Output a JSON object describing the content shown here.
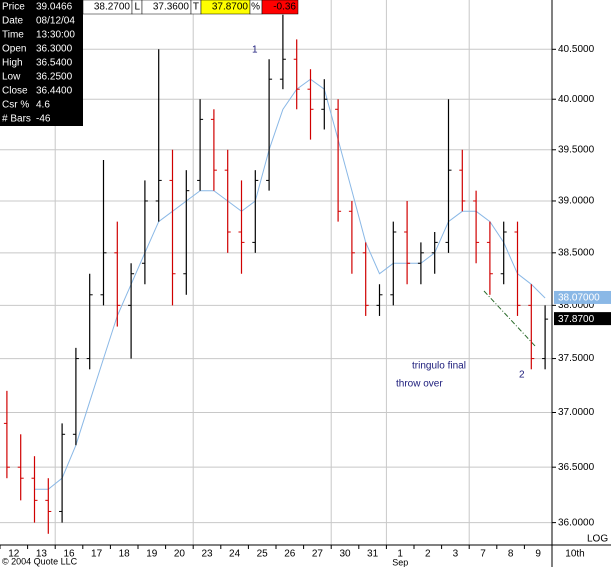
{
  "info_panel": {
    "rows": [
      [
        "Price",
        "39.0466"
      ],
      [
        "Date",
        "08/12/04"
      ],
      [
        "Time",
        "13:30:00"
      ],
      [
        "Open",
        "36.3000"
      ],
      [
        "High",
        "36.5400"
      ],
      [
        "Low",
        "36.2500"
      ],
      [
        "Close",
        "36.4400"
      ],
      [
        "Csr %",
        "4.6"
      ],
      [
        "# Bars",
        "-46"
      ]
    ]
  },
  "quote_bar": [
    "38.2700",
    "L",
    "37.3600",
    "T",
    "37.8700",
    "%",
    "-0.36"
  ],
  "footer": "© 2004 Quote LLC",
  "chart_data": {
    "type": "ohlc",
    "log": true,
    "grid": true,
    "ylim": [
      35.8,
      41.0
    ],
    "yticks": [
      {
        "value": 36,
        "label": "36.0000"
      },
      {
        "value": 36.5,
        "label": "36.5000"
      },
      {
        "value": 37,
        "label": "37.0000"
      },
      {
        "value": 37.5,
        "label": "37.5000"
      },
      {
        "value": 38,
        "label": "38.0000"
      },
      {
        "value": 38.5,
        "label": "38.5000"
      },
      {
        "value": 39,
        "label": "39.0000"
      },
      {
        "value": 39.5,
        "label": "39.5000"
      },
      {
        "value": 40,
        "label": "40.0000"
      },
      {
        "value": 40.5,
        "label": "40.5000"
      }
    ],
    "categories": [
      "12",
      null,
      "13",
      null,
      "16",
      null,
      "17",
      null,
      "18",
      null,
      "19",
      null,
      "20",
      null,
      "23",
      null,
      "24",
      null,
      "25",
      null,
      "26",
      null,
      "27",
      null,
      "30",
      null,
      "31",
      null,
      "1",
      null,
      "2",
      null,
      "3",
      null,
      "7",
      null,
      "8",
      null,
      "9",
      null
    ],
    "month_label": "Sep",
    "end_label": "10th",
    "scale_label": "LOG",
    "up_color": "#000000",
    "down_color": "#d00000",
    "open": [
      36.9,
      36.5,
      36.4,
      36.2,
      36.1,
      36.8,
      37.5,
      38.1,
      38.5,
      38.0,
      38.4,
      39.0,
      39.2,
      38.3,
      39.2,
      39.8,
      39.3,
      38.7,
      38.6,
      39.2,
      40.2,
      40.4,
      40.1,
      39.9,
      39.9,
      38.9,
      38.5,
      38.0,
      38.1,
      38.7,
      38.4,
      38.5,
      38.6,
      39.3,
      39.0,
      38.6,
      38.3,
      38.7,
      38.0,
      37.5
    ],
    "high": [
      37.2,
      36.8,
      36.6,
      36.4,
      36.9,
      37.6,
      38.3,
      39.4,
      38.8,
      38.4,
      39.2,
      40.5,
      39.5,
      39.3,
      40.0,
      39.9,
      39.5,
      39.2,
      39.3,
      40.4,
      40.85,
      40.6,
      40.3,
      40.2,
      40.0,
      39.0,
      38.6,
      38.2,
      38.8,
      39.0,
      38.6,
      38.7,
      40.0,
      39.5,
      39.1,
      38.8,
      38.8,
      38.8,
      38.2,
      38.0
    ],
    "low": [
      36.4,
      36.2,
      36.0,
      35.9,
      36.0,
      36.7,
      37.4,
      38.0,
      37.8,
      37.5,
      38.2,
      38.8,
      38.0,
      38.1,
      39.1,
      39.1,
      38.5,
      38.3,
      38.5,
      39.1,
      40.1,
      39.9,
      39.6,
      39.7,
      38.8,
      38.3,
      37.9,
      37.9,
      38.0,
      38.2,
      38.2,
      38.3,
      38.5,
      38.9,
      38.4,
      38.1,
      38.2,
      37.9,
      37.4,
      37.4
    ],
    "close": [
      36.5,
      36.4,
      36.2,
      36.1,
      36.8,
      37.5,
      38.1,
      38.5,
      38.0,
      38.3,
      39.0,
      39.2,
      38.3,
      39.1,
      39.8,
      39.3,
      38.7,
      38.6,
      39.2,
      40.2,
      40.4,
      40.1,
      39.9,
      40.0,
      38.9,
      38.5,
      38.0,
      38.1,
      38.7,
      38.4,
      38.5,
      38.6,
      39.3,
      39.0,
      38.6,
      38.3,
      38.7,
      38.0,
      37.5,
      37.87
    ],
    "close_label": "37.8700",
    "ma": {
      "color": "#8ab8e6",
      "values": [
        null,
        null,
        36.3,
        36.3,
        36.4,
        36.7,
        37.1,
        37.5,
        37.9,
        38.2,
        38.5,
        38.8,
        38.9,
        39.0,
        39.1,
        39.1,
        39.0,
        38.9,
        39.0,
        39.5,
        39.9,
        40.1,
        40.2,
        40.1,
        39.6,
        39.1,
        38.6,
        38.3,
        38.4,
        38.4,
        38.4,
        38.5,
        38.8,
        38.9,
        38.9,
        38.8,
        38.6,
        38.3,
        38.2,
        38.07
      ],
      "label": "38.07000"
    },
    "annotations": [
      "1",
      "tringulo final",
      "throw over",
      "2"
    ]
  }
}
